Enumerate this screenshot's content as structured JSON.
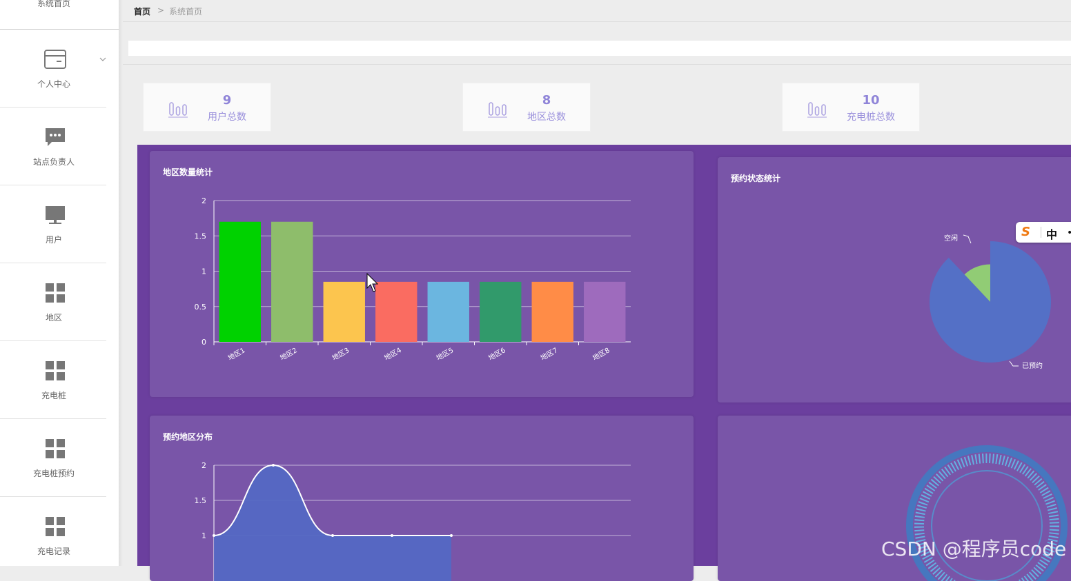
{
  "sidebar": {
    "top_item": "系统首页",
    "items": [
      {
        "label": "个人中心",
        "icon": "id-card-icon"
      },
      {
        "label": "站点负责人",
        "icon": "chat-bubble-icon"
      },
      {
        "label": "用户",
        "icon": "monitor-icon"
      },
      {
        "label": "地区",
        "icon": "grid-icon"
      },
      {
        "label": "充电桩",
        "icon": "grid-icon"
      },
      {
        "label": "充电桩预约",
        "icon": "grid-icon"
      },
      {
        "label": "充电记录",
        "icon": "grid-icon"
      }
    ]
  },
  "breadcrumb": {
    "home": "首页",
    "separator": ">",
    "current": "系统首页"
  },
  "stats": [
    {
      "value": "9",
      "label": "用户总数",
      "icon": "bar-chart-icon"
    },
    {
      "value": "8",
      "label": "地区总数",
      "icon": "bar-chart-icon"
    },
    {
      "value": "10",
      "label": "充电桩总数",
      "icon": "bar-chart-icon"
    }
  ],
  "panels": {
    "region_count": {
      "title": "地区数量统计"
    },
    "reservation_status": {
      "title": "预约状态统计"
    },
    "reservation_region": {
      "title": "预约地区分布"
    }
  },
  "ime": {
    "logo": "S",
    "mode": "中",
    "more": "•"
  },
  "watermark": "CSDN @程序员code",
  "colors": {
    "dashboard_bg": "#6b3f9e",
    "panel_bg": "#7955a8",
    "stat_text": "#8f84d8"
  },
  "chart_data": [
    {
      "type": "bar",
      "title": "地区数量统计",
      "categories": [
        "地区1",
        "地区2",
        "地区3",
        "地区4",
        "地区5",
        "地区6",
        "地区7",
        "地区8"
      ],
      "values": [
        1.7,
        1.7,
        0.85,
        0.85,
        0.85,
        0.85,
        0.85,
        0.85
      ],
      "ylim": [
        0,
        2
      ],
      "yticks": [
        "0",
        "0.5",
        "1",
        "1.5",
        "2"
      ],
      "bar_colors": [
        "#00d200",
        "#8ebd6b",
        "#fcc54e",
        "#fa6c61",
        "#6bb6e0",
        "#319a6b",
        "#ff8c47",
        "#9e6bbd"
      ],
      "grid": true
    },
    {
      "type": "pie",
      "title": "预约状态统计",
      "slices": [
        {
          "name": "已预约",
          "value": 88,
          "color": "#5470c6"
        },
        {
          "name": "空闲",
          "value": 12,
          "color": "#91cc75"
        }
      ]
    },
    {
      "type": "area",
      "title": "预约地区分布",
      "values": [
        1,
        2,
        1,
        1,
        1
      ],
      "ylim": [
        1,
        2
      ],
      "yticks": [
        "1",
        "1.5",
        "2"
      ],
      "grid": true
    }
  ]
}
